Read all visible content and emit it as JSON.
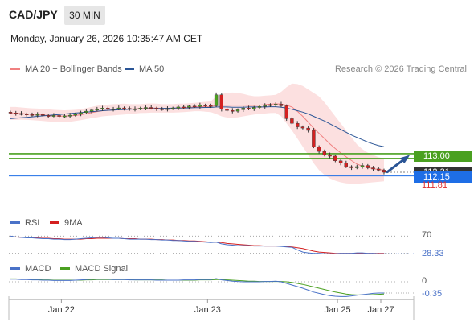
{
  "header": {
    "symbol": "CAD/JPY",
    "timeframe": "30 MIN",
    "datetime": "Monday, January 26, 2026 10:35:47 AM CET"
  },
  "legend": {
    "main": [
      {
        "label": "MA 20 + Bollinger Bands",
        "color": "#f08080"
      },
      {
        "label": "MA 50",
        "color": "#2a5596"
      }
    ],
    "rsi": [
      {
        "label": "RSI",
        "color": "#4a72c8"
      },
      {
        "label": "9MA",
        "color": "#d42020"
      }
    ],
    "macd": [
      {
        "label": "MACD",
        "color": "#4a72c8"
      },
      {
        "label": "MACD Signal",
        "color": "#4aa020"
      }
    ]
  },
  "copyright": "Research © 2026 Trading Central",
  "chart_data": {
    "type": "candlestick",
    "price_axis_labels": {
      "resistance": "113.00",
      "last": "112.31",
      "pivot": "112.15",
      "support": "111.81"
    },
    "colors": {
      "resistance": "#4aa020",
      "last": "#333333",
      "pivot": "#1e6ee6",
      "support": "#e03030",
      "up": "#4aa020",
      "down": "#d42020",
      "arrow": "#2a5596"
    },
    "levels": {
      "resistance": 113.0,
      "last": 112.31,
      "pivot": 112.15,
      "support": 111.81
    },
    "x_ticks": [
      "Jan 22",
      "Jan 23",
      "Jan 25",
      "Jan 27"
    ],
    "close": [
      114.85,
      114.82,
      114.8,
      114.78,
      114.75,
      114.78,
      114.74,
      114.72,
      114.74,
      114.7,
      114.72,
      114.75,
      114.8,
      114.86,
      114.92,
      114.97,
      115.02,
      115.05,
      115.0,
      115.02,
      115.06,
      115.04,
      115.0,
      115.02,
      115.05,
      115.08,
      115.05,
      115.02,
      115.0,
      115.03,
      115.05,
      115.1,
      115.08,
      115.14,
      115.12,
      115.18,
      115.16,
      115.15,
      115.62,
      115.0,
      114.95,
      114.92,
      114.98,
      115.05,
      115.02,
      115.08,
      115.12,
      115.16,
      115.2,
      115.22,
      115.15,
      114.6,
      114.4,
      114.25,
      114.2,
      114.1,
      113.4,
      113.2,
      113.05,
      113.0,
      112.8,
      112.7,
      112.55,
      112.5,
      112.55,
      112.6,
      112.5,
      112.45,
      112.4,
      112.31
    ],
    "bb_upper": [
      115.1,
      115.1,
      115.08,
      115.06,
      115.04,
      115.03,
      115.01,
      115.0,
      114.98,
      114.97,
      114.96,
      114.97,
      114.98,
      115.0,
      115.05,
      115.1,
      115.15,
      115.18,
      115.2,
      115.22,
      115.23,
      115.24,
      115.22,
      115.22,
      115.22,
      115.24,
      115.25,
      115.24,
      115.22,
      115.22,
      115.22,
      115.24,
      115.24,
      115.26,
      115.28,
      115.3,
      115.32,
      115.34,
      115.55,
      115.65,
      115.7,
      115.72,
      115.7,
      115.66,
      115.6,
      115.56,
      115.56,
      115.58,
      115.6,
      115.62,
      115.75,
      115.95,
      116.1,
      116.08,
      116.0,
      115.85,
      115.7,
      115.55,
      115.3,
      115.0,
      114.7,
      114.4,
      114.1,
      113.8,
      113.5,
      113.3,
      113.15,
      113.05,
      112.95,
      112.9
    ],
    "bb_lower": [
      114.55,
      114.55,
      114.56,
      114.55,
      114.54,
      114.52,
      114.5,
      114.48,
      114.47,
      114.46,
      114.46,
      114.47,
      114.5,
      114.54,
      114.58,
      114.62,
      114.66,
      114.7,
      114.72,
      114.74,
      114.76,
      114.78,
      114.8,
      114.82,
      114.84,
      114.85,
      114.86,
      114.86,
      114.86,
      114.86,
      114.86,
      114.87,
      114.88,
      114.9,
      114.92,
      114.92,
      114.9,
      114.88,
      114.8,
      114.7,
      114.65,
      114.64,
      114.66,
      114.7,
      114.74,
      114.78,
      114.8,
      114.82,
      114.84,
      114.85,
      114.7,
      114.4,
      114.1,
      113.75,
      113.4,
      113.05,
      112.7,
      112.4,
      112.2,
      112.05,
      111.95,
      111.88,
      111.84,
      111.82,
      111.82,
      111.84,
      111.86,
      111.88,
      111.9,
      111.92
    ],
    "ma50": [
      114.6,
      114.62,
      114.64,
      114.66,
      114.68,
      114.7,
      114.72,
      114.74,
      114.76,
      114.78,
      114.8,
      114.82,
      114.84,
      114.86,
      114.88,
      114.9,
      114.92,
      114.94,
      114.96,
      114.97,
      114.98,
      114.99,
      115.0,
      115.01,
      115.02,
      115.02,
      115.03,
      115.03,
      115.04,
      115.04,
      115.05,
      115.05,
      115.06,
      115.06,
      115.07,
      115.07,
      115.08,
      115.08,
      115.1,
      115.1,
      115.1,
      115.09,
      115.09,
      115.09,
      115.1,
      115.1,
      115.1,
      115.1,
      115.11,
      115.11,
      115.09,
      115.05,
      115.0,
      114.94,
      114.88,
      114.8,
      114.7,
      114.6,
      114.5,
      114.38,
      114.26,
      114.14,
      114.02,
      113.9,
      113.8,
      113.7,
      113.6,
      113.52,
      113.45,
      113.4
    ],
    "rsi": [
      70,
      68,
      67,
      66,
      66,
      65,
      64,
      64,
      63,
      63,
      62,
      62,
      63,
      64,
      65,
      66,
      67,
      67,
      66,
      65,
      65,
      64,
      63,
      63,
      63,
      63,
      62,
      62,
      61,
      61,
      60,
      60,
      59,
      58,
      58,
      57,
      56,
      55,
      56,
      52,
      50,
      49,
      48,
      48,
      48,
      47,
      47,
      47,
      47,
      47,
      46,
      45,
      44,
      38,
      33,
      31,
      30,
      30,
      29,
      29,
      29,
      30,
      30,
      30,
      31,
      31,
      30,
      30,
      29,
      29
    ],
    "rsi_ma": [
      68,
      68,
      67,
      67,
      66,
      66,
      65,
      65,
      64,
      64,
      63,
      63,
      63,
      63,
      64,
      64,
      65,
      65,
      65,
      65,
      65,
      64,
      64,
      64,
      63,
      63,
      63,
      62,
      62,
      61,
      61,
      60,
      60,
      59,
      59,
      58,
      57,
      56,
      56,
      55,
      53,
      52,
      51,
      50,
      49,
      48,
      48,
      47,
      47,
      47,
      47,
      46,
      45,
      43,
      41,
      38,
      35,
      33,
      32,
      31,
      30,
      30,
      30,
      30,
      30,
      30,
      30,
      30,
      30,
      30
    ],
    "rsi_levels": {
      "upper_label": "70",
      "lower_label": "28.33"
    },
    "macd": [
      0.08,
      0.08,
      0.07,
      0.07,
      0.06,
      0.06,
      0.05,
      0.05,
      0.04,
      0.04,
      0.04,
      0.04,
      0.05,
      0.06,
      0.07,
      0.08,
      0.08,
      0.08,
      0.08,
      0.07,
      0.07,
      0.07,
      0.06,
      0.06,
      0.06,
      0.06,
      0.06,
      0.05,
      0.05,
      0.05,
      0.05,
      0.05,
      0.06,
      0.06,
      0.06,
      0.07,
      0.07,
      0.07,
      0.1,
      0.06,
      0.04,
      0.02,
      0.01,
      0.0,
      0.0,
      0.0,
      0.0,
      0.01,
      0.01,
      0.02,
      0.0,
      -0.05,
      -0.1,
      -0.15,
      -0.2,
      -0.26,
      -0.32,
      -0.36,
      -0.4,
      -0.43,
      -0.45,
      -0.46,
      -0.46,
      -0.44,
      -0.42,
      -0.4,
      -0.38,
      -0.36,
      -0.35,
      -0.35
    ],
    "macd_signal": [
      0.09,
      0.09,
      0.08,
      0.08,
      0.07,
      0.07,
      0.06,
      0.06,
      0.05,
      0.05,
      0.05,
      0.05,
      0.05,
      0.05,
      0.06,
      0.06,
      0.07,
      0.07,
      0.07,
      0.07,
      0.07,
      0.07,
      0.07,
      0.06,
      0.06,
      0.06,
      0.06,
      0.06,
      0.06,
      0.05,
      0.05,
      0.05,
      0.05,
      0.05,
      0.05,
      0.06,
      0.06,
      0.06,
      0.07,
      0.07,
      0.06,
      0.05,
      0.04,
      0.03,
      0.02,
      0.02,
      0.01,
      0.01,
      0.01,
      0.01,
      0.01,
      0.0,
      -0.02,
      -0.05,
      -0.08,
      -0.12,
      -0.16,
      -0.2,
      -0.24,
      -0.28,
      -0.32,
      -0.35,
      -0.38,
      -0.4,
      -0.41,
      -0.41,
      -0.41,
      -0.4,
      -0.39,
      -0.38
    ],
    "macd_levels": {
      "zero_label": "0",
      "last_label": "-0.35"
    }
  }
}
